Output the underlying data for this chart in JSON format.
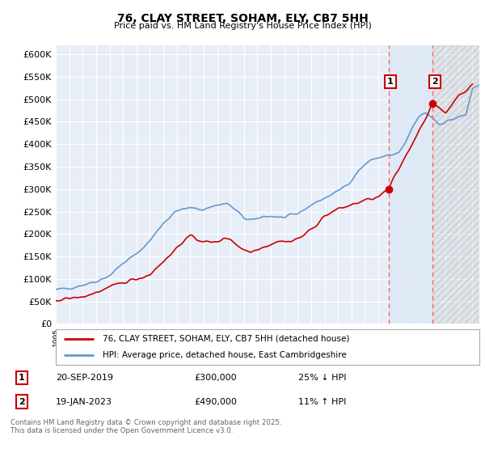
{
  "title": "76, CLAY STREET, SOHAM, ELY, CB7 5HH",
  "subtitle": "Price paid vs. HM Land Registry's House Price Index (HPI)",
  "background_color": "#ffffff",
  "plot_background": "#e8eef8",
  "grid_color": "#ffffff",
  "ylim": [
    0,
    620000
  ],
  "yticks": [
    0,
    50000,
    100000,
    150000,
    200000,
    250000,
    300000,
    350000,
    400000,
    450000,
    500000,
    550000,
    600000
  ],
  "xlim_start": 1995.0,
  "xlim_end": 2026.5,
  "transaction1_x": 2019.75,
  "transaction1_y": 300000,
  "transaction2_x": 2023.05,
  "transaction2_y": 490000,
  "vline1_x": 2019.75,
  "vline2_x": 2023.05,
  "vline_color": "#ff6666",
  "legend_label_red": "76, CLAY STREET, SOHAM, ELY, CB7 5HH (detached house)",
  "legend_label_blue": "HPI: Average price, detached house, East Cambridgeshire",
  "footer": "Contains HM Land Registry data © Crown copyright and database right 2025.\nThis data is licensed under the Open Government Licence v3.0.",
  "red_line_color": "#cc0000",
  "blue_line_color": "#6699cc",
  "shade_between_color": "#dce8f5",
  "shade_after_color": "#d0d0d0"
}
